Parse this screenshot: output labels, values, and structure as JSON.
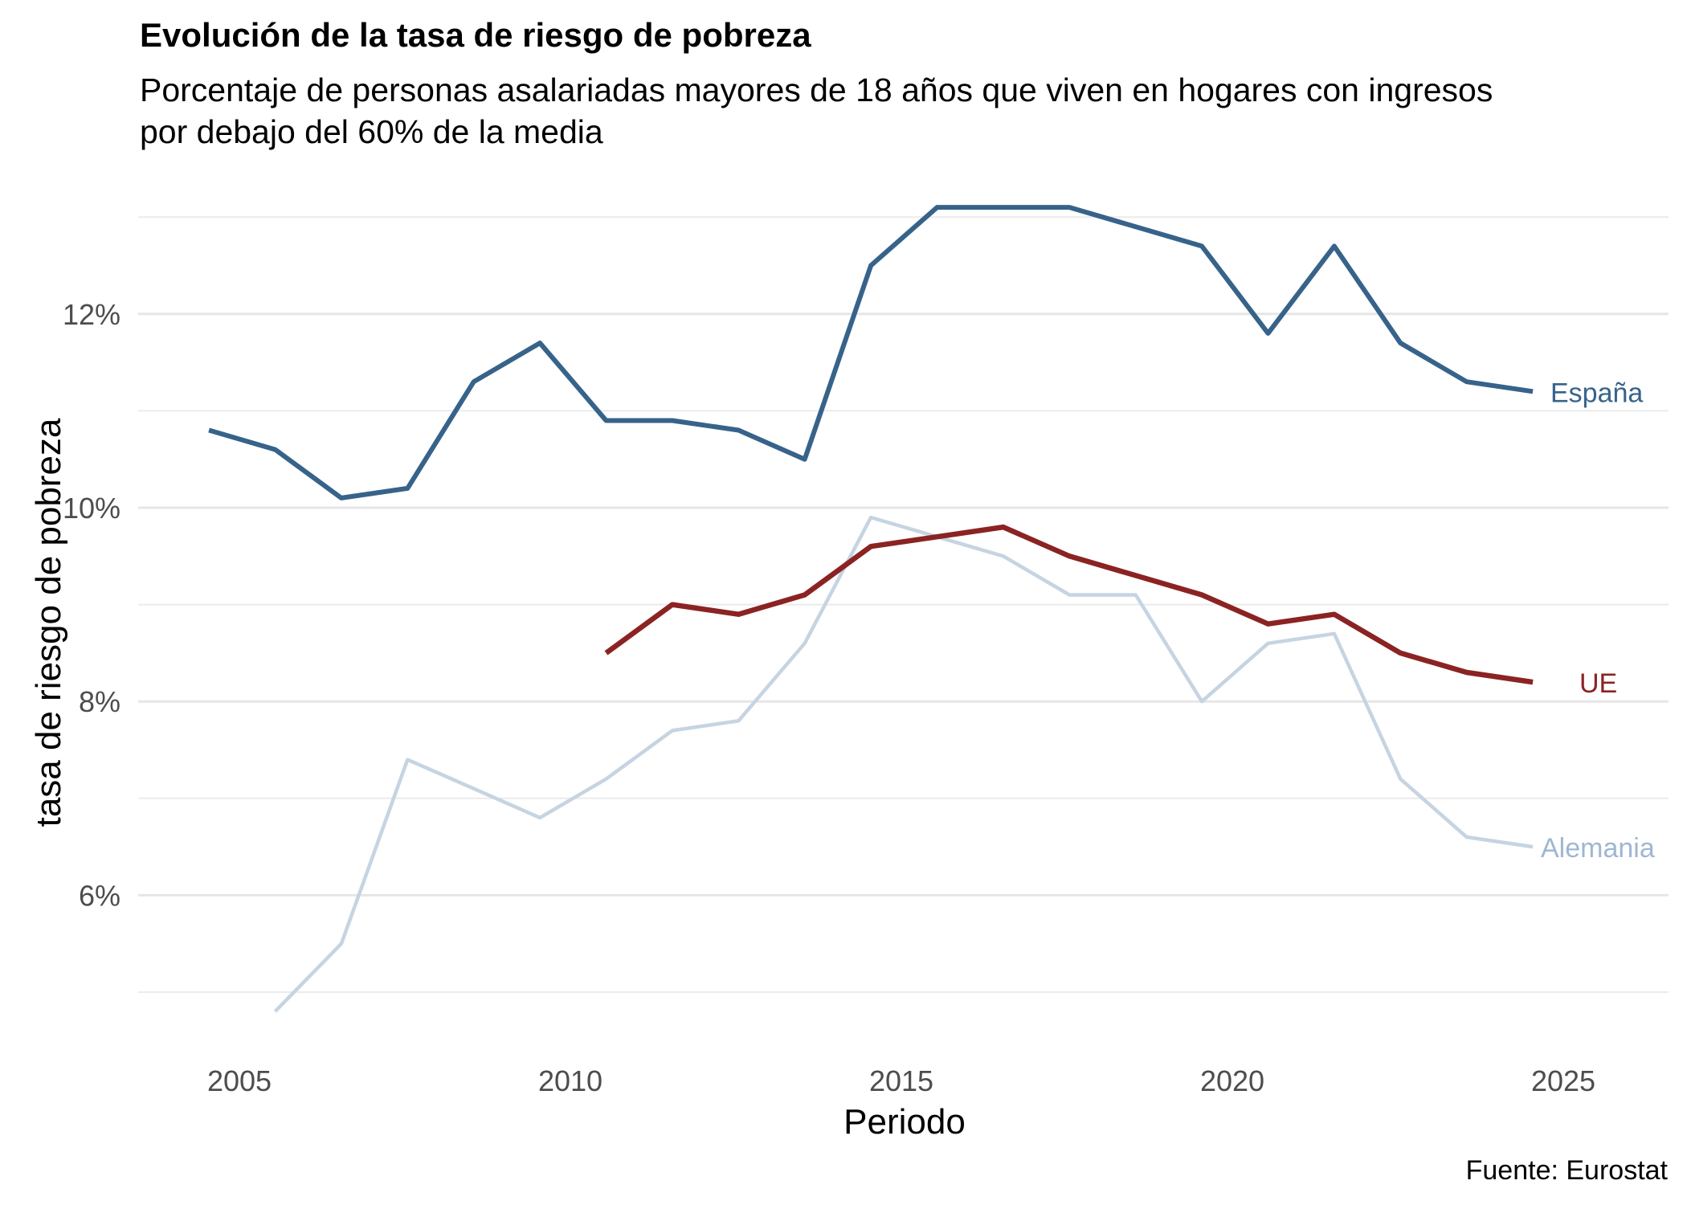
{
  "title": "Evolución de la tasa de riesgo de pobreza",
  "subtitle_lines": [
    "Porcentaje de personas asalariadas mayores de 18 años que viven en hogares con ingresos",
    "por debajo del 60% de la media"
  ],
  "caption": "Fuente: Eurostat",
  "chart_data": {
    "type": "line",
    "title": "Evolución de la tasa de riesgo de pobreza",
    "subtitle": "Porcentaje de personas asalariadas mayores de 18 años que viven en hogares con ingresos por debajo del 60% de la media",
    "xlabel": "Periodo",
    "ylabel": "tasa de riesgo de pobreza",
    "x_ticks": [
      2005,
      2010,
      2015,
      2020,
      2025
    ],
    "x_tick_labels": [
      "2005",
      "2010",
      "2015",
      "2020",
      "2025"
    ],
    "y_ticks": [
      6,
      8,
      10,
      12
    ],
    "y_tick_labels": [
      "6%",
      "8%",
      "10%",
      "12%"
    ],
    "y_minor_gridlines": [
      5,
      7,
      9,
      11,
      13
    ],
    "xlim": [
      2003.5,
      2026.6
    ],
    "ylim": [
      4.6,
      13.4
    ],
    "grid": true,
    "legend": "direct labels at line ends (right)",
    "series": [
      {
        "name": "España",
        "color": "#37638a",
        "x": [
          2004,
          2005,
          2006,
          2007,
          2008,
          2009,
          2010,
          2011,
          2012,
          2013,
          2014,
          2015,
          2016,
          2017,
          2018,
          2019,
          2020,
          2021,
          2022,
          2023,
          2024
        ],
        "values": [
          10.8,
          10.6,
          10.1,
          10.2,
          11.3,
          11.7,
          10.9,
          10.9,
          10.8,
          10.5,
          12.5,
          13.1,
          13.1,
          13.1,
          12.9,
          12.7,
          11.8,
          12.7,
          11.7,
          11.3,
          11.2
        ]
      },
      {
        "name": "UE",
        "color": "#8b2323",
        "x": [
          2010,
          2011,
          2012,
          2013,
          2014,
          2015,
          2016,
          2017,
          2018,
          2019,
          2020,
          2021,
          2022,
          2023,
          2024
        ],
        "values": [
          8.5,
          9.0,
          8.9,
          9.1,
          9.6,
          9.7,
          9.8,
          9.5,
          9.3,
          9.1,
          8.8,
          8.9,
          8.5,
          8.3,
          8.2
        ]
      },
      {
        "name": "Alemania",
        "color": "#c6d4e2",
        "label_color": "#9fb6d3",
        "x": [
          2005,
          2006,
          2007,
          2008,
          2009,
          2010,
          2011,
          2012,
          2013,
          2014,
          2015,
          2016,
          2017,
          2018,
          2019,
          2020,
          2021,
          2022,
          2023,
          2024
        ],
        "values": [
          4.8,
          5.5,
          7.4,
          7.1,
          6.8,
          7.2,
          7.7,
          7.8,
          8.6,
          9.9,
          9.7,
          9.5,
          9.1,
          9.1,
          8.0,
          8.6,
          8.7,
          7.2,
          6.6,
          6.5
        ]
      }
    ]
  }
}
